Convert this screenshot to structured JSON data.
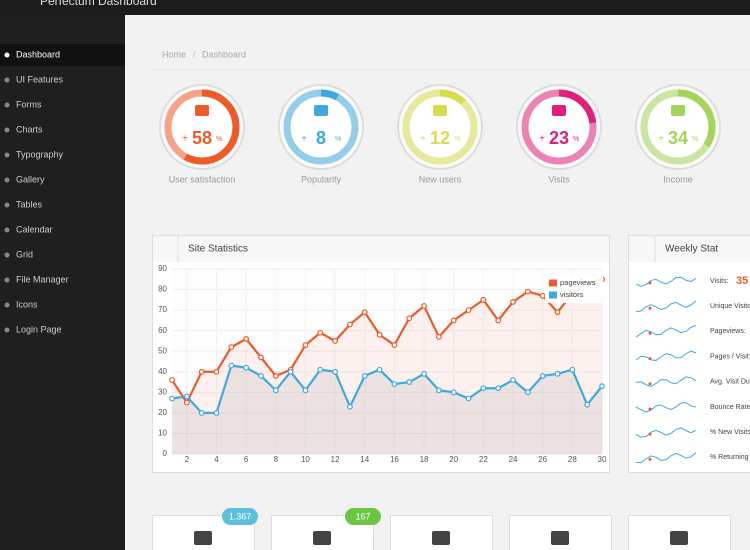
{
  "header": {
    "title": "Perfectum Dashboard"
  },
  "sidebar": {
    "items": [
      "Dashboard",
      "UI Features",
      "Forms",
      "Charts",
      "Typography",
      "Gallery",
      "Tables",
      "Calendar",
      "Grid",
      "File Manager",
      "Icons",
      "Login Page"
    ]
  },
  "breadcrumb": {
    "items": [
      "Home",
      "Dashboard"
    ],
    "separator": "/"
  },
  "stats": [
    {
      "label": "User satisfaction",
      "sign": "+",
      "value": 58,
      "unit": "%",
      "color": "#f05a28"
    },
    {
      "label": "Popularity",
      "sign": "+",
      "value": 8,
      "unit": "%",
      "color": "#3fa9de"
    },
    {
      "label": "New users",
      "sign": "+",
      "value": 12,
      "unit": "%",
      "color": "#d6dc4a"
    },
    {
      "label": "Visits",
      "sign": "+",
      "value": 23,
      "unit": "%",
      "color": "#e0207a"
    },
    {
      "label": "Income",
      "sign": "+",
      "value": 34,
      "unit": "%",
      "color": "#a6d45a"
    }
  ],
  "chart_data": {
    "type": "line",
    "title": "Site Statistics",
    "x": [
      1,
      2,
      3,
      4,
      5,
      6,
      7,
      8,
      9,
      10,
      11,
      12,
      13,
      14,
      15,
      16,
      17,
      18,
      19,
      20,
      21,
      22,
      23,
      24,
      25,
      26,
      27,
      28,
      29,
      30
    ],
    "xlim": [
      1,
      30
    ],
    "xticks": [
      2,
      4,
      6,
      8,
      10,
      12,
      14,
      16,
      18,
      20,
      22,
      24,
      26,
      28,
      30
    ],
    "ylim": [
      0,
      90
    ],
    "yticks": [
      0,
      10,
      20,
      30,
      40,
      50,
      60,
      70,
      80,
      90
    ],
    "series": [
      {
        "name": "pageviews",
        "color": "#f05a28",
        "values": [
          36,
          25,
          40,
          40,
          52,
          56,
          47,
          38,
          41,
          53,
          59,
          55,
          63,
          69,
          58,
          53,
          66,
          72,
          57,
          65,
          70,
          75,
          65,
          74,
          79,
          77,
          69,
          78,
          83,
          85
        ]
      },
      {
        "name": "visitors",
        "color": "#3fa9de",
        "values": [
          27,
          28,
          20,
          20,
          43,
          42,
          38,
          31,
          40,
          31,
          41,
          40,
          23,
          38,
          41,
          34,
          35,
          39,
          31,
          30,
          27,
          32,
          32,
          36,
          30,
          38,
          39,
          41,
          24,
          33
        ]
      }
    ],
    "grid": true,
    "legend": "upper right"
  },
  "weekly_stat": {
    "title": "Weekly Stat",
    "visits_value": "35",
    "rows": [
      "Visits:",
      "Unique Visitors:",
      "Pageviews:",
      "Pages / Visit:",
      "Avg. Visit Duration:",
      "Bounce Rate:",
      "% New Visits:",
      "% Returning Visitors:"
    ]
  },
  "tiles": {
    "badges": [
      {
        "text": "1.367",
        "color": "#5bc0de",
        "tile": 0
      },
      {
        "text": "167",
        "color": "#6cc644",
        "tile": 1
      }
    ]
  }
}
